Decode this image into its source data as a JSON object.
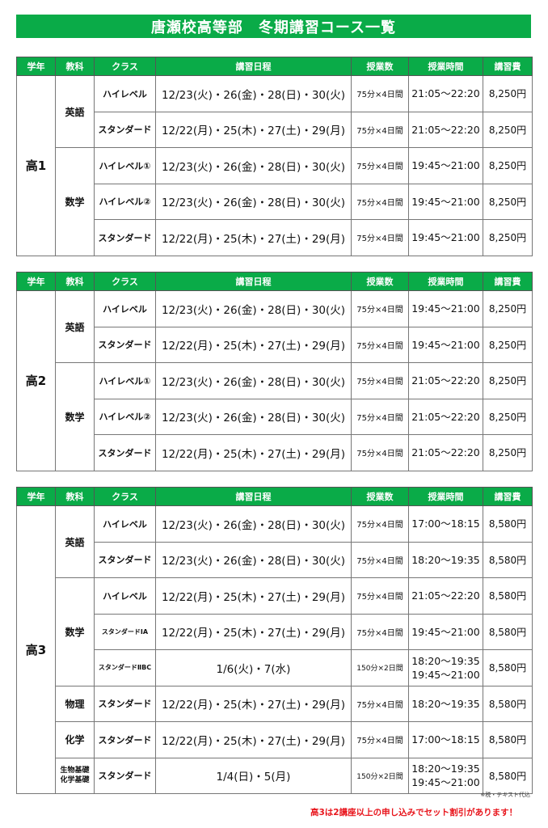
{
  "title": "唐瀬校高等部　冬期講習コース一覧",
  "colors": {
    "header_green": "#0aab48",
    "promo_red": "#e8151c"
  },
  "headers": [
    "学年",
    "教科",
    "クラス",
    "講習日程",
    "授業数",
    "授業時間",
    "講習費"
  ],
  "tables": [
    {
      "grade": "高1",
      "subjects": [
        {
          "name": "英語",
          "rows": [
            {
              "class": "ハイレベル",
              "dates": "12/23(火)・26(金)・28(日)・30(火)",
              "count": "75分×4日間",
              "time": "21:05～22:20",
              "fee": "8,250円"
            },
            {
              "class": "スタンダード",
              "dates": "12/22(月)・25(木)・27(土)・29(月)",
              "count": "75分×4日間",
              "time": "21:05～22:20",
              "fee": "8,250円"
            }
          ]
        },
        {
          "name": "数学",
          "rows": [
            {
              "class": "ハイレベル①",
              "dates": "12/23(火)・26(金)・28(日)・30(火)",
              "count": "75分×4日間",
              "time": "19:45～21:00",
              "fee": "8,250円"
            },
            {
              "class": "ハイレベル②",
              "dates": "12/23(火)・26(金)・28(日)・30(火)",
              "count": "75分×4日間",
              "time": "19:45～21:00",
              "fee": "8,250円"
            },
            {
              "class": "スタンダード",
              "dates": "12/22(月)・25(木)・27(土)・29(月)",
              "count": "75分×4日間",
              "time": "19:45～21:00",
              "fee": "8,250円"
            }
          ]
        }
      ]
    },
    {
      "grade": "高2",
      "subjects": [
        {
          "name": "英語",
          "rows": [
            {
              "class": "ハイレベル",
              "dates": "12/23(火)・26(金)・28(日)・30(火)",
              "count": "75分×4日間",
              "time": "19:45～21:00",
              "fee": "8,250円"
            },
            {
              "class": "スタンダード",
              "dates": "12/22(月)・25(木)・27(土)・29(月)",
              "count": "75分×4日間",
              "time": "19:45～21:00",
              "fee": "8,250円"
            }
          ]
        },
        {
          "name": "数学",
          "rows": [
            {
              "class": "ハイレベル①",
              "dates": "12/23(火)・26(金)・28(日)・30(火)",
              "count": "75分×4日間",
              "time": "21:05～22:20",
              "fee": "8,250円"
            },
            {
              "class": "ハイレベル②",
              "dates": "12/23(火)・26(金)・28(日)・30(火)",
              "count": "75分×4日間",
              "time": "21:05～22:20",
              "fee": "8,250円"
            },
            {
              "class": "スタンダード",
              "dates": "12/22(月)・25(木)・27(土)・29(月)",
              "count": "75分×4日間",
              "time": "21:05～22:20",
              "fee": "8,250円"
            }
          ]
        }
      ]
    },
    {
      "grade": "高3",
      "subjects": [
        {
          "name": "英語",
          "rows": [
            {
              "class": "ハイレベル",
              "dates": "12/23(火)・26(金)・28(日)・30(火)",
              "count": "75分×4日間",
              "time": "17:00～18:15",
              "fee": "8,580円"
            },
            {
              "class": "スタンダード",
              "dates": "12/23(火)・26(金)・28(日)・30(火)",
              "count": "75分×4日間",
              "time": "18:20～19:35",
              "fee": "8,580円"
            }
          ]
        },
        {
          "name": "数学",
          "rows": [
            {
              "class": "ハイレベル",
              "dates": "12/22(月)・25(木)・27(土)・29(月)",
              "count": "75分×4日間",
              "time": "21:05～22:20",
              "fee": "8,580円"
            },
            {
              "class": "スタンダードⅠA",
              "dates": "12/22(月)・25(木)・27(土)・29(月)",
              "count": "75分×4日間",
              "time": "19:45～21:00",
              "fee": "8,580円"
            },
            {
              "class": "スタンダードⅡBC",
              "dates": "1/6(火)・7(水)",
              "count": "150分×2日間",
              "time": "18:20～19:35\n19:45～21:00",
              "fee": "8,580円"
            }
          ]
        },
        {
          "name": "物理",
          "rows": [
            {
              "class": "スタンダード",
              "dates": "12/22(月)・25(木)・27(土)・29(月)",
              "count": "75分×4日間",
              "time": "18:20～19:35",
              "fee": "8,580円"
            }
          ]
        },
        {
          "name": "化学",
          "rows": [
            {
              "class": "スタンダード",
              "dates": "12/22(月)・25(木)・27(土)・29(月)",
              "count": "75分×4日間",
              "time": "17:00～18:15",
              "fee": "8,580円"
            }
          ]
        },
        {
          "name": "生物基礎\n化学基礎",
          "rows": [
            {
              "class": "スタンダード",
              "dates": "1/4(日)・5(月)",
              "count": "150分×2日間",
              "time": "18:20～19:35\n19:45～21:00",
              "fee": "8,580円"
            }
          ]
        }
      ]
    }
  ],
  "footer": {
    "note": "※税・テキスト代込",
    "promo": "高3は2講座以上の申し込みでセット割引があります！"
  }
}
